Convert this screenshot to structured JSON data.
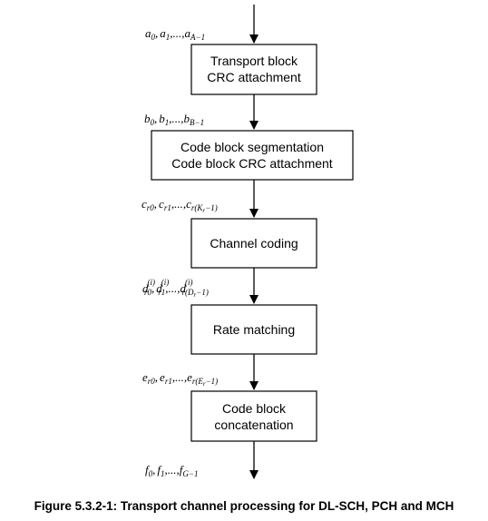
{
  "blocks": {
    "transport_crc": {
      "line1": "Transport block",
      "line2": "CRC attachment"
    },
    "segmentation": {
      "line1": "Code block segmentation",
      "line2": "Code block CRC attachment"
    },
    "channel_coding": {
      "line1": "Channel coding"
    },
    "rate_matching": {
      "line1": "Rate matching"
    },
    "concatenation": {
      "line1": "Code block",
      "line2": "concatenation"
    }
  },
  "signals": {
    "a": {
      "sym": "a",
      "s0": "0",
      "s1": "1",
      "sN": "A−1"
    },
    "b": {
      "sym": "b",
      "s0": "0",
      "s1": "1",
      "sN": "B−1"
    },
    "c": {
      "sym": "c",
      "s0": "r0",
      "s1": "r1",
      "sN_pre": "r(",
      "sN_var": "K",
      "sN_varsub": "r",
      "sN_post": "−1)"
    },
    "d": {
      "sym": "d",
      "sup": "(i)",
      "s0": "r0",
      "s1": "r1",
      "sN_pre": "r(",
      "sN_var": "D",
      "sN_varsub": "r",
      "sN_post": "−1)"
    },
    "e": {
      "sym": "e",
      "s0": "r0",
      "s1": "r1",
      "sN_pre": "r(",
      "sN_var": "E",
      "sN_varsub": "r",
      "sN_post": "−1)"
    },
    "f": {
      "sym": "f",
      "s0": "0",
      "s1": "1",
      "sN": "G−1"
    },
    "sep": ",",
    "dots": ",...,"
  },
  "caption": "Figure 5.3.2-1: Transport channel processing for DL-SCH, PCH and MCH"
}
